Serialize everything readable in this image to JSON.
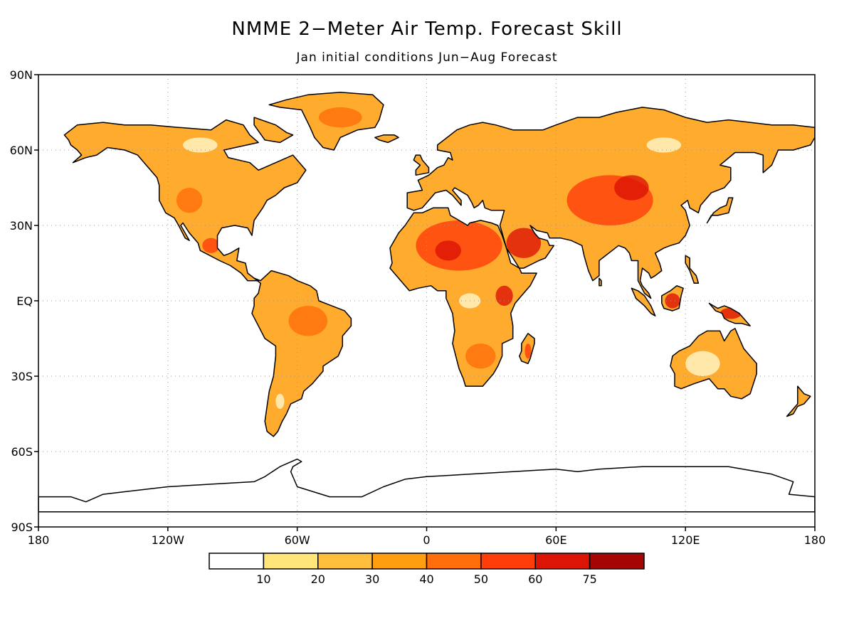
{
  "title": "NMME 2−Meter Air Temp. Forecast Skill",
  "subtitle": "Jan initial conditions   Jun−Aug Forecast",
  "lon_ticks": [
    {
      "lon": -180,
      "label": "180"
    },
    {
      "lon": -120,
      "label": "120W"
    },
    {
      "lon": -60,
      "label": "60W"
    },
    {
      "lon": 0,
      "label": "0"
    },
    {
      "lon": 60,
      "label": "60E"
    },
    {
      "lon": 120,
      "label": "120E"
    },
    {
      "lon": 180,
      "label": "180"
    }
  ],
  "lat_ticks": [
    {
      "lat": 90,
      "label": "90N"
    },
    {
      "lat": 60,
      "label": "60N"
    },
    {
      "lat": 30,
      "label": "30N"
    },
    {
      "lat": 0,
      "label": "EQ"
    },
    {
      "lat": -30,
      "label": "30S"
    },
    {
      "lat": -60,
      "label": "60S"
    },
    {
      "lat": -90,
      "label": "90S"
    }
  ],
  "colorbar": {
    "bins": [
      {
        "color": "#ffffff"
      },
      {
        "color": "#ffe57a",
        "label": "10"
      },
      {
        "color": "#ffbf3d",
        "label": "20"
      },
      {
        "color": "#ff9f0f",
        "label": "30"
      },
      {
        "color": "#ff6e0a",
        "label": "40"
      },
      {
        "color": "#ff3d0a",
        "label": "50"
      },
      {
        "color": "#dc1405",
        "label": "60"
      },
      {
        "color": "#a50505",
        "label": "75"
      }
    ]
  },
  "land_fill_color": "#ffab2e",
  "hotspots": [
    {
      "name": "greenland",
      "lon": -40,
      "lat": 73,
      "rx": 10,
      "ry": 4,
      "color": "#ff6e0a"
    },
    {
      "name": "sahara",
      "lon": 15,
      "lat": 22,
      "rx": 20,
      "ry": 10,
      "color": "#ff3d0a"
    },
    {
      "name": "sahara-core",
      "lon": 10,
      "lat": 20,
      "rx": 6,
      "ry": 4,
      "color": "#dc1405"
    },
    {
      "name": "arabia",
      "lon": 45,
      "lat": 23,
      "rx": 8,
      "ry": 6,
      "color": "#dc1405"
    },
    {
      "name": "central-asia",
      "lon": 85,
      "lat": 40,
      "rx": 20,
      "ry": 10,
      "color": "#ff3d0a"
    },
    {
      "name": "mongolia",
      "lon": 95,
      "lat": 45,
      "rx": 8,
      "ry": 5,
      "color": "#dc1405"
    },
    {
      "name": "amazon",
      "lon": -55,
      "lat": -8,
      "rx": 9,
      "ry": 6,
      "color": "#ff6e0a"
    },
    {
      "name": "mexico",
      "lon": -100,
      "lat": 22,
      "rx": 4,
      "ry": 3,
      "color": "#ff3d0a"
    },
    {
      "name": "east-africa",
      "lon": 36,
      "lat": 2,
      "rx": 4,
      "ry": 4,
      "color": "#dc1405"
    },
    {
      "name": "southern-africa",
      "lon": 25,
      "lat": -22,
      "rx": 7,
      "ry": 5,
      "color": "#ff6e0a"
    },
    {
      "name": "madagascar",
      "lon": 47,
      "lat": -20,
      "rx": 1.5,
      "ry": 3,
      "color": "#ff3d0a"
    },
    {
      "name": "borneo",
      "lon": 114,
      "lat": 0,
      "rx": 3.5,
      "ry": 3,
      "color": "#dc1405"
    },
    {
      "name": "new-guinea",
      "lon": 141,
      "lat": -5,
      "rx": 5,
      "ry": 2.2,
      "color": "#dc1405"
    },
    {
      "name": "western-usa",
      "lon": -110,
      "lat": 40,
      "rx": 6,
      "ry": 5,
      "color": "#ff6e0a"
    }
  ],
  "pale_spots": [
    {
      "name": "siberia-pale",
      "lon": 110,
      "lat": 62,
      "rx": 8,
      "ry": 3
    },
    {
      "name": "canada-pale",
      "lon": -105,
      "lat": 62,
      "rx": 8,
      "ry": 3
    },
    {
      "name": "australia-pale",
      "lon": 128,
      "lat": -25,
      "rx": 8,
      "ry": 5
    },
    {
      "name": "congo-pale",
      "lon": 20,
      "lat": 0,
      "rx": 5,
      "ry": 3
    },
    {
      "name": "patagonia-pale",
      "lon": -68,
      "lat": -40,
      "rx": 2,
      "ry": 3
    }
  ]
}
